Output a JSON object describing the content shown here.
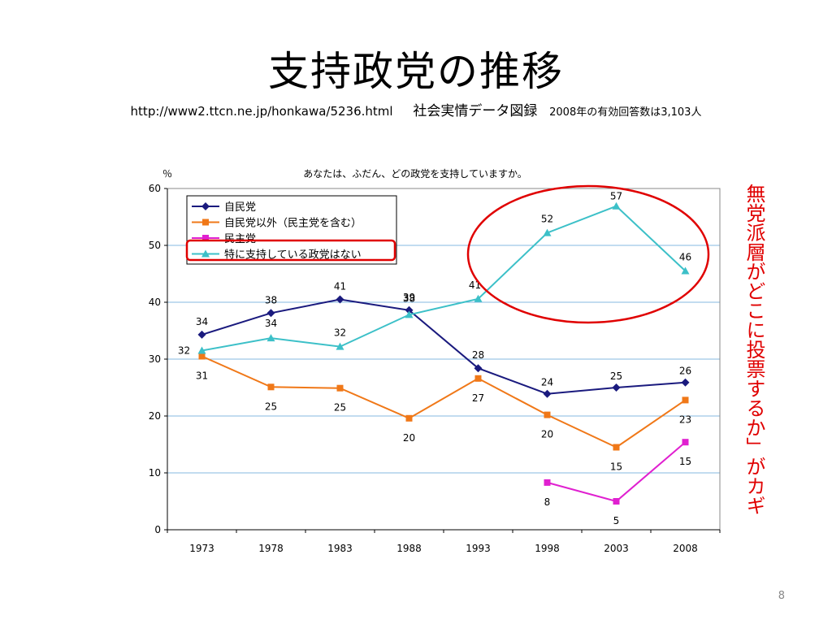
{
  "slide": {
    "title": "支持政党の推移",
    "subtitle_url": "http://www2.ttcn.ne.jp/honkawa/5236.html",
    "subtitle_source": "社会実情データ図録",
    "subtitle_note": "2008年の有効回答数は3,103人",
    "side_note": "無党派層がどこに投票するか」がカギ",
    "page_number": "8",
    "highlight_color": "#e00000"
  },
  "chart_data": {
    "type": "line",
    "title": "あなたは、ふだん、どの政党を支持していますか。",
    "ylabel": "％",
    "xlabel": "",
    "ylim": [
      0,
      60
    ],
    "yticks": [
      0,
      10,
      20,
      30,
      40,
      50,
      60
    ],
    "grid": true,
    "legend_position": "top-left",
    "categories": [
      "1973",
      "1978",
      "1983",
      "1988",
      "1993",
      "1998",
      "2003",
      "2008"
    ],
    "series": [
      {
        "name": "自民党",
        "color": "#1a1a7e",
        "marker": "diamond",
        "values": [
          34.3,
          38.1,
          40.5,
          38.6,
          28.4,
          23.9,
          25.0,
          25.9
        ],
        "labels": [
          "34",
          "38",
          "41",
          "39",
          "28",
          "24",
          "25",
          "26"
        ]
      },
      {
        "name": "自民党以外（民主党を含む）",
        "color": "#f07818",
        "marker": "square",
        "values": [
          30.5,
          25.1,
          24.9,
          19.6,
          26.6,
          20.2,
          14.5,
          22.8
        ],
        "labels": [
          "31",
          "25",
          "25",
          "20",
          "27",
          "20",
          "15",
          "23"
        ]
      },
      {
        "name": "民主党",
        "color": "#e020d0",
        "marker": "square",
        "values": [
          null,
          null,
          null,
          null,
          null,
          8.3,
          5.0,
          15.4
        ],
        "labels": [
          null,
          null,
          null,
          null,
          null,
          "8",
          "5",
          "15"
        ]
      },
      {
        "name": "特に支持している政党はない",
        "color": "#3cc0c8",
        "marker": "triangle",
        "values": [
          31.5,
          33.7,
          32.2,
          37.8,
          40.6,
          52.2,
          56.9,
          45.5
        ],
        "labels": [
          "32",
          "34",
          "32",
          "38",
          "41",
          "52",
          "57",
          "46"
        ]
      }
    ]
  }
}
